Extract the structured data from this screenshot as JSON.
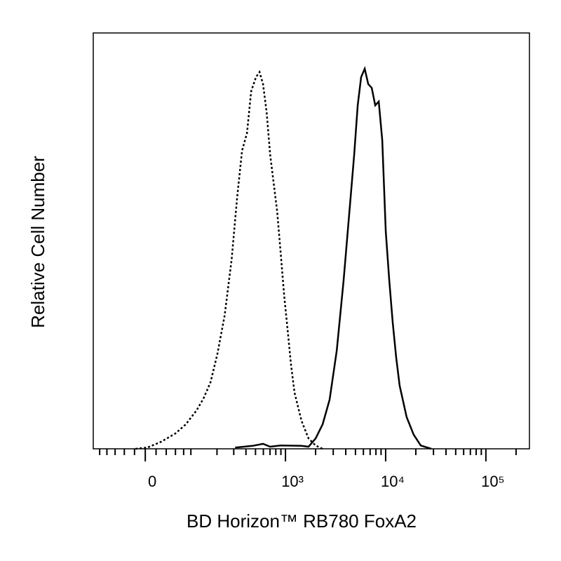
{
  "chart_data": {
    "type": "line",
    "xlabel": "BD Horizon™ RB780 FoxA2",
    "ylabel": "Relative Cell Number",
    "xscale": "biexponential",
    "xlim": [
      -120,
      272000
    ],
    "ylim": [
      0,
      100
    ],
    "xticks": [
      {
        "value": 0,
        "label": "0"
      },
      {
        "value": 1000,
        "label": "10³"
      },
      {
        "value": 10000,
        "label": "10⁴"
      },
      {
        "value": 100000,
        "label": "10⁵"
      }
    ],
    "xminorticks": [
      -100,
      -80,
      -60,
      -40,
      -20,
      20,
      40,
      60,
      80,
      100,
      200,
      300,
      400,
      500,
      600,
      700,
      800,
      900,
      2000,
      3000,
      4000,
      5000,
      6000,
      7000,
      8000,
      9000,
      20000,
      30000,
      40000,
      50000,
      60000,
      70000,
      80000,
      90000,
      200000
    ],
    "series": [
      {
        "color": "#000000",
        "dash": "dotted",
        "x": [
          -18,
          4,
          30,
          60,
          86,
          118,
          142,
          170,
          202,
          241,
          285,
          326,
          365,
          410,
          452,
          506,
          549,
          596,
          647,
          702,
          760,
          824,
          894,
          968,
          1050,
          1136,
          1232,
          1448,
          1700,
          2000,
          2350
        ],
        "values": [
          0,
          0.3,
          1.7,
          3.7,
          5.9,
          9.3,
          12.1,
          16.0,
          22.8,
          32.0,
          45.5,
          60.7,
          71.7,
          75.9,
          86.0,
          89.4,
          90.6,
          87.7,
          81.0,
          70.8,
          64.1,
          57.3,
          47.2,
          37.1,
          28.7,
          20.2,
          13.5,
          6.7,
          2.5,
          0.8,
          0
        ]
      },
      {
        "color": "#000000",
        "dash": "solid",
        "x": [
          310,
          466,
          596,
          702,
          894,
          1448,
          1700,
          2000,
          2350,
          2760,
          3250,
          3810,
          4480,
          4860,
          5260,
          5700,
          6180,
          6700,
          7260,
          7870,
          8530,
          9250,
          10020,
          10860,
          11760,
          12750,
          13800,
          16200,
          19050,
          22400,
          28550
        ],
        "values": [
          0.3,
          0.7,
          1.2,
          0.5,
          0.8,
          0.7,
          0.5,
          2.5,
          5.9,
          11.8,
          23.6,
          40.5,
          60.7,
          70.8,
          82.6,
          89.4,
          91.4,
          87.7,
          86.8,
          82.6,
          83.5,
          74.2,
          52.3,
          40.5,
          30.4,
          21.9,
          15.2,
          7.6,
          3.4,
          0.8,
          0
        ]
      }
    ]
  }
}
